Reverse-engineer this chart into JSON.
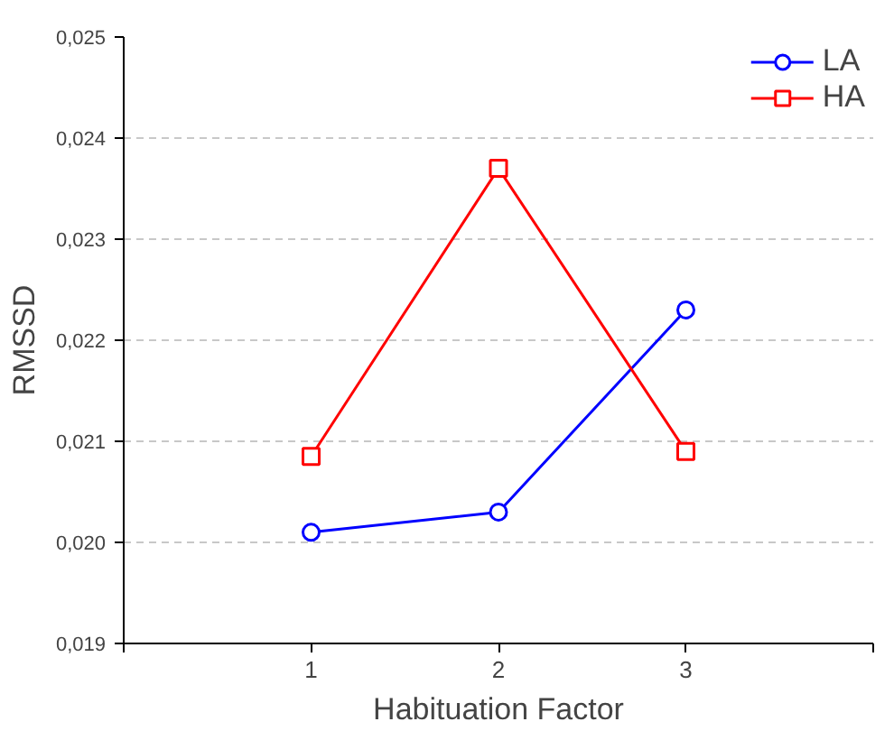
{
  "chart_data": {
    "type": "line",
    "xlabel": "Habituation Factor",
    "ylabel": "RMSSD",
    "x": [
      1,
      2,
      3
    ],
    "series": [
      {
        "name": "LA",
        "color": "#0000ff",
        "values": [
          0.0201,
          0.0203,
          0.0223
        ],
        "marker": "circle"
      },
      {
        "name": "HA",
        "color": "#ff0000",
        "values": [
          0.02085,
          0.0237,
          0.0209
        ],
        "marker": "square"
      }
    ],
    "xlim": [
      0,
      4
    ],
    "xticks": [
      {
        "value": 0,
        "label": null
      },
      1,
      2,
      3,
      {
        "value": 4,
        "label": null
      }
    ],
    "ylim": [
      0.019,
      0.025
    ],
    "yticks": [
      {
        "value": 0.019,
        "label": "0,019"
      },
      {
        "value": 0.02,
        "label": "0,020"
      },
      {
        "value": 0.021,
        "label": "0,021"
      },
      {
        "value": 0.022,
        "label": "0,022"
      },
      {
        "value": 0.023,
        "label": "0,023"
      },
      {
        "value": 0.024,
        "label": "0,024"
      },
      {
        "value": 0.025,
        "label": "0,025"
      }
    ],
    "grid": "y",
    "legend": "top right",
    "line_style": "solid"
  }
}
